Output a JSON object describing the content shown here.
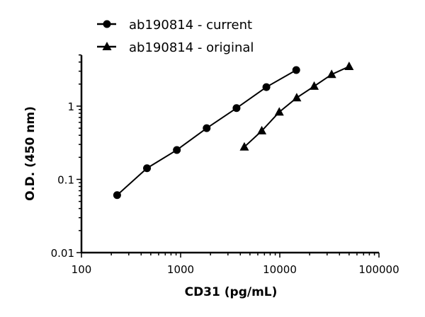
{
  "chart_data": {
    "type": "line",
    "title": "",
    "xlabel": "CD31 (pg/mL)",
    "ylabel": "O.D. (450 nm)",
    "xscale": "log",
    "yscale": "log",
    "xlim": [
      100,
      100000
    ],
    "ylim": [
      0.01,
      5
    ],
    "x_ticks": [
      100,
      1000,
      10000,
      100000
    ],
    "x_tick_labels": [
      "100",
      "1000",
      "10000",
      "100000"
    ],
    "y_ticks": [
      0.01,
      0.1,
      1
    ],
    "y_tick_labels": [
      "0.01",
      "0.1",
      "1"
    ],
    "grid": false,
    "legend_position": "top",
    "series": [
      {
        "name": "ab190814 - current",
        "marker": "circle",
        "color": "#000000",
        "x": [
          229,
          458,
          916,
          1831,
          3662,
          7324,
          14648
        ],
        "y": [
          0.061,
          0.142,
          0.252,
          0.5,
          0.94,
          1.82,
          3.11
        ]
      },
      {
        "name": "ab190814 - original",
        "marker": "triangle",
        "color": "#000000",
        "x": [
          4390,
          6584,
          9877,
          14815,
          22222,
          33333,
          50000
        ],
        "y": [
          0.277,
          0.46,
          0.83,
          1.3,
          1.87,
          2.71,
          3.48
        ]
      }
    ]
  }
}
